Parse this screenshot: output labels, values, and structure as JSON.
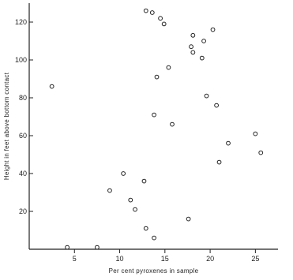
{
  "chart_data": {
    "type": "scatter",
    "title": "",
    "xlabel": "Per cent pyroxenes in sample",
    "ylabel": "Height in feet above bottom contact",
    "xlim": [
      0,
      27.5
    ],
    "ylim": [
      0,
      130
    ],
    "xticks": [
      5,
      10,
      15,
      20,
      25
    ],
    "yticks": [
      20,
      40,
      60,
      80,
      100,
      120
    ],
    "grid": false,
    "legend": "none",
    "points": [
      {
        "x": 2.5,
        "y": 86
      },
      {
        "x": 4.2,
        "y": 1
      },
      {
        "x": 7.5,
        "y": 1
      },
      {
        "x": 8.9,
        "y": 31
      },
      {
        "x": 10.4,
        "y": 40
      },
      {
        "x": 11.2,
        "y": 26
      },
      {
        "x": 11.7,
        "y": 21
      },
      {
        "x": 12.7,
        "y": 36
      },
      {
        "x": 12.9,
        "y": 11
      },
      {
        "x": 12.9,
        "y": 126
      },
      {
        "x": 13.6,
        "y": 125
      },
      {
        "x": 13.8,
        "y": 6
      },
      {
        "x": 13.8,
        "y": 71
      },
      {
        "x": 14.1,
        "y": 91
      },
      {
        "x": 14.5,
        "y": 122
      },
      {
        "x": 14.9,
        "y": 119
      },
      {
        "x": 15.4,
        "y": 96
      },
      {
        "x": 15.8,
        "y": 66
      },
      {
        "x": 17.6,
        "y": 16
      },
      {
        "x": 17.9,
        "y": 107
      },
      {
        "x": 18.1,
        "y": 113
      },
      {
        "x": 18.1,
        "y": 104
      },
      {
        "x": 19.1,
        "y": 101
      },
      {
        "x": 19.3,
        "y": 110
      },
      {
        "x": 19.6,
        "y": 81
      },
      {
        "x": 20.3,
        "y": 116
      },
      {
        "x": 20.7,
        "y": 76
      },
      {
        "x": 21.0,
        "y": 46
      },
      {
        "x": 22.0,
        "y": 56
      },
      {
        "x": 25.0,
        "y": 61
      },
      {
        "x": 25.6,
        "y": 51
      }
    ]
  }
}
